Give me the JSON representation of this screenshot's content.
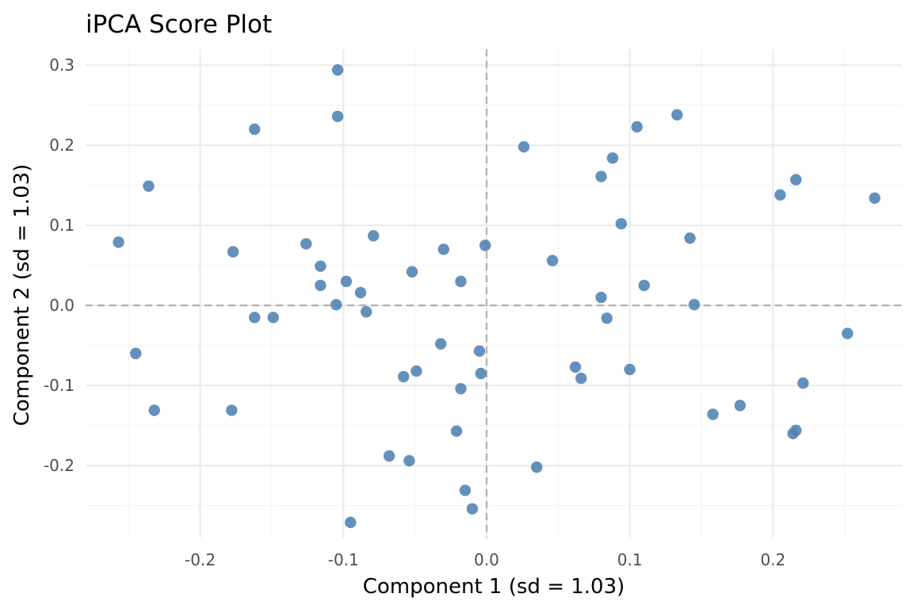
{
  "chart_data": {
    "type": "scatter",
    "title": "iPCA Score Plot",
    "xlabel": "Component 1 (sd = 1.03)",
    "ylabel": "Component 2 (sd = 1.03)",
    "xlim": [
      -0.28,
      0.29
    ],
    "ylim": [
      -0.29,
      0.32
    ],
    "x_major_ticks": [
      -0.2,
      -0.1,
      0.0,
      0.1,
      0.2
    ],
    "x_tick_labels": [
      "-0.2",
      "-0.1",
      "0.0",
      "0.1",
      "0.2"
    ],
    "x_minor_ticks": [
      -0.25,
      -0.15,
      -0.05,
      0.05,
      0.15,
      0.25
    ],
    "y_major_ticks": [
      -0.2,
      -0.1,
      0.0,
      0.1,
      0.2,
      0.3
    ],
    "y_tick_labels": [
      "-0.2",
      "-0.1",
      "0.0",
      "0.1",
      "0.2",
      "0.3"
    ],
    "y_minor_ticks": [
      -0.25,
      -0.15,
      -0.05,
      0.05,
      0.15,
      0.25
    ],
    "reference_lines": {
      "x": 0,
      "y": 0,
      "style": "dashed"
    },
    "grid": true,
    "legend": "none",
    "point_color": "#4f81b3",
    "points": [
      {
        "x": -0.257,
        "y": 0.079
      },
      {
        "x": -0.245,
        "y": -0.06
      },
      {
        "x": -0.236,
        "y": 0.149
      },
      {
        "x": -0.232,
        "y": -0.131
      },
      {
        "x": -0.177,
        "y": 0.067
      },
      {
        "x": -0.178,
        "y": -0.131
      },
      {
        "x": -0.162,
        "y": 0.22
      },
      {
        "x": -0.162,
        "y": -0.015
      },
      {
        "x": -0.149,
        "y": -0.015
      },
      {
        "x": -0.126,
        "y": 0.077
      },
      {
        "x": -0.116,
        "y": 0.049
      },
      {
        "x": -0.116,
        "y": 0.025
      },
      {
        "x": -0.105,
        "y": 0.001
      },
      {
        "x": -0.104,
        "y": 0.294
      },
      {
        "x": -0.104,
        "y": 0.236
      },
      {
        "x": -0.098,
        "y": 0.03
      },
      {
        "x": -0.095,
        "y": -0.271
      },
      {
        "x": -0.088,
        "y": 0.016
      },
      {
        "x": -0.084,
        "y": -0.008
      },
      {
        "x": -0.079,
        "y": 0.087
      },
      {
        "x": -0.068,
        "y": -0.188
      },
      {
        "x": -0.058,
        "y": -0.089
      },
      {
        "x": -0.054,
        "y": -0.194
      },
      {
        "x": -0.052,
        "y": 0.042
      },
      {
        "x": -0.049,
        "y": -0.082
      },
      {
        "x": -0.032,
        "y": -0.048
      },
      {
        "x": -0.03,
        "y": 0.07
      },
      {
        "x": -0.021,
        "y": -0.157
      },
      {
        "x": -0.018,
        "y": 0.03
      },
      {
        "x": -0.018,
        "y": -0.104
      },
      {
        "x": -0.015,
        "y": -0.231
      },
      {
        "x": -0.01,
        "y": -0.254
      },
      {
        "x": -0.005,
        "y": -0.057
      },
      {
        "x": -0.004,
        "y": -0.085
      },
      {
        "x": -0.001,
        "y": 0.075
      },
      {
        "x": 0.026,
        "y": 0.198
      },
      {
        "x": 0.035,
        "y": -0.202
      },
      {
        "x": 0.046,
        "y": 0.056
      },
      {
        "x": 0.062,
        "y": -0.077
      },
      {
        "x": 0.066,
        "y": -0.091
      },
      {
        "x": 0.08,
        "y": 0.161
      },
      {
        "x": 0.08,
        "y": 0.01
      },
      {
        "x": 0.084,
        "y": -0.016
      },
      {
        "x": 0.088,
        "y": 0.184
      },
      {
        "x": 0.094,
        "y": 0.102
      },
      {
        "x": 0.1,
        "y": -0.08
      },
      {
        "x": 0.105,
        "y": 0.223
      },
      {
        "x": 0.11,
        "y": 0.025
      },
      {
        "x": 0.133,
        "y": 0.238
      },
      {
        "x": 0.142,
        "y": 0.084
      },
      {
        "x": 0.145,
        "y": 0.001
      },
      {
        "x": 0.158,
        "y": -0.136
      },
      {
        "x": 0.177,
        "y": -0.125
      },
      {
        "x": 0.205,
        "y": 0.138
      },
      {
        "x": 0.214,
        "y": -0.16
      },
      {
        "x": 0.216,
        "y": 0.157
      },
      {
        "x": 0.216,
        "y": -0.156
      },
      {
        "x": 0.221,
        "y": -0.097
      },
      {
        "x": 0.252,
        "y": -0.035
      },
      {
        "x": 0.271,
        "y": 0.134
      }
    ]
  }
}
